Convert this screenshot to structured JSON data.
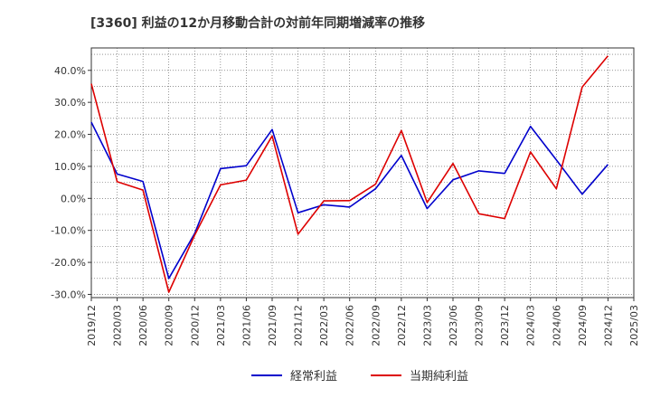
{
  "chart_data": {
    "type": "line",
    "title": "[3360]  利益の12か月移動合計の対前年同期増減率の推移",
    "xlabel": "",
    "ylabel": "",
    "ylim": [
      -31,
      47
    ],
    "y_ticks": [
      -30,
      -20,
      -10,
      0,
      10,
      20,
      30,
      40
    ],
    "y_tick_labels": [
      "-30.0%",
      "-20.0%",
      "-10.0%",
      "0.0%",
      "10.0%",
      "20.0%",
      "30.0%",
      "40.0%"
    ],
    "x_tick_labels": [
      "2019/12",
      "2020/03",
      "2020/06",
      "2020/09",
      "2020/12",
      "2021/03",
      "2021/06",
      "2021/09",
      "2021/12",
      "2022/03",
      "2022/06",
      "2022/09",
      "2022/12",
      "2023/03",
      "2023/06",
      "2023/09",
      "2023/12",
      "2024/03",
      "2024/06",
      "2024/09",
      "2024/12",
      "2025/03"
    ],
    "grid": true,
    "legend_position": "bottom",
    "series": [
      {
        "name": "経常利益",
        "color": "#0000cc",
        "values": [
          23.8,
          7.6,
          5.3,
          -25.0,
          -11.0,
          9.3,
          10.2,
          21.5,
          -4.5,
          -2.0,
          -2.7,
          3.0,
          13.4,
          -3.2,
          5.8,
          8.6,
          7.8,
          22.5,
          12.0,
          1.3,
          10.6
        ]
      },
      {
        "name": "当期純利益",
        "color": "#dd0000",
        "values": [
          35.8,
          5.2,
          2.6,
          -29.3,
          -11.5,
          4.2,
          5.7,
          19.5,
          -11.2,
          -0.8,
          -0.7,
          4.4,
          21.2,
          -1.3,
          10.9,
          -4.8,
          -6.3,
          14.5,
          3.0,
          34.8,
          44.5
        ]
      }
    ]
  }
}
